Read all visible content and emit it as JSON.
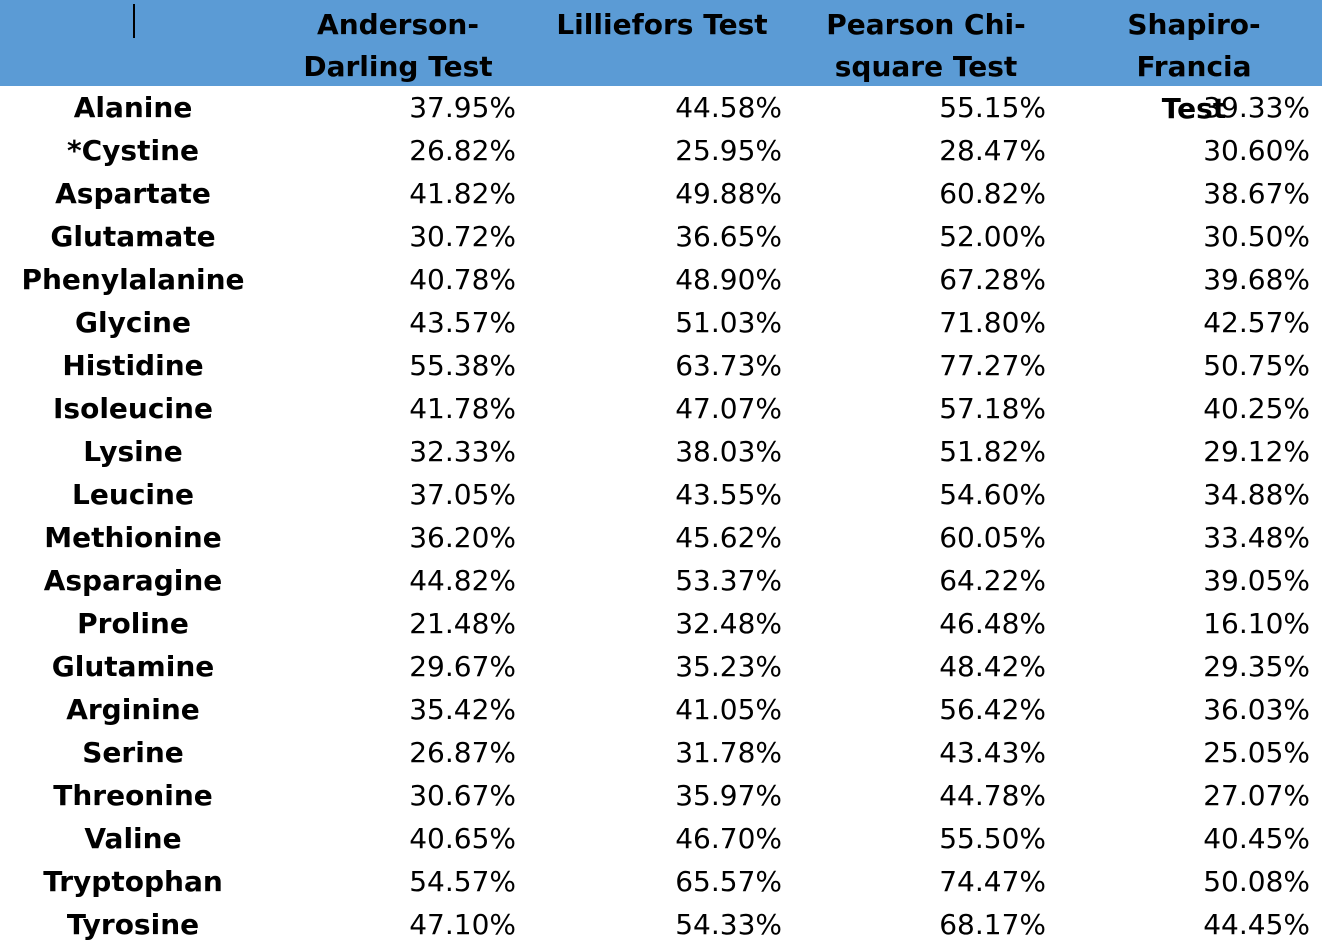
{
  "headers": [
    "Anderson-\nDarling Test",
    "Lilliefors Test",
    "Pearson Chi-\nsquare Test",
    "Shapiro-Francia\nTest"
  ],
  "rows": [
    {
      "name": "Alanine",
      "values": [
        "37.95%",
        "44.58%",
        "55.15%",
        "39.33%"
      ]
    },
    {
      "name": "*Cystine",
      "values": [
        "26.82%",
        "25.95%",
        "28.47%",
        "30.60%"
      ]
    },
    {
      "name": "Aspartate",
      "values": [
        "41.82%",
        "49.88%",
        "60.82%",
        "38.67%"
      ]
    },
    {
      "name": "Glutamate",
      "values": [
        "30.72%",
        "36.65%",
        "52.00%",
        "30.50%"
      ]
    },
    {
      "name": "Phenylalanine",
      "values": [
        "40.78%",
        "48.90%",
        "67.28%",
        "39.68%"
      ]
    },
    {
      "name": "Glycine",
      "values": [
        "43.57%",
        "51.03%",
        "71.80%",
        "42.57%"
      ]
    },
    {
      "name": "Histidine",
      "values": [
        "55.38%",
        "63.73%",
        "77.27%",
        "50.75%"
      ]
    },
    {
      "name": "Isoleucine",
      "values": [
        "41.78%",
        "47.07%",
        "57.18%",
        "40.25%"
      ]
    },
    {
      "name": "Lysine",
      "values": [
        "32.33%",
        "38.03%",
        "51.82%",
        "29.12%"
      ]
    },
    {
      "name": "Leucine",
      "values": [
        "37.05%",
        "43.55%",
        "54.60%",
        "34.88%"
      ]
    },
    {
      "name": "Methionine",
      "values": [
        "36.20%",
        "45.62%",
        "60.05%",
        "33.48%"
      ]
    },
    {
      "name": "Asparagine",
      "values": [
        "44.82%",
        "53.37%",
        "64.22%",
        "39.05%"
      ]
    },
    {
      "name": "Proline",
      "values": [
        "21.48%",
        "32.48%",
        "46.48%",
        "16.10%"
      ]
    },
    {
      "name": "Glutamine",
      "values": [
        "29.67%",
        "35.23%",
        "48.42%",
        "29.35%"
      ]
    },
    {
      "name": "Arginine",
      "values": [
        "35.42%",
        "41.05%",
        "56.42%",
        "36.03%"
      ]
    },
    {
      "name": "Serine",
      "values": [
        "26.87%",
        "31.78%",
        "43.43%",
        "25.05%"
      ]
    },
    {
      "name": "Threonine",
      "values": [
        "30.67%",
        "35.97%",
        "44.78%",
        "27.07%"
      ]
    },
    {
      "name": "Valine",
      "values": [
        "40.65%",
        "46.70%",
        "55.50%",
        "40.45%"
      ]
    },
    {
      "name": "Tryptophan",
      "values": [
        "54.57%",
        "65.57%",
        "74.47%",
        "50.08%"
      ]
    },
    {
      "name": "Tyrosine",
      "values": [
        "47.10%",
        "54.33%",
        "68.17%",
        "44.45%"
      ]
    }
  ],
  "colors": {
    "header_bg": "#5b9bd5",
    "text": "#000000",
    "background": "#ffffff"
  }
}
